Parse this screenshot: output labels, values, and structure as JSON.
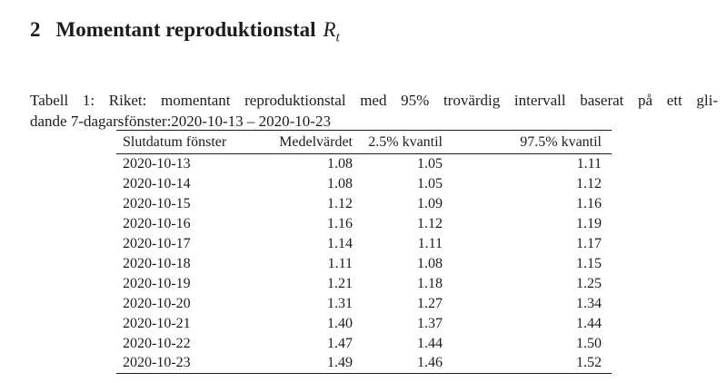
{
  "page": {
    "background_color": "#ffffff",
    "text_color": "#1c1c1c"
  },
  "heading": {
    "number": "2",
    "title": "Momentant reproduktionstal",
    "math_symbol": "R",
    "math_subscript": "t"
  },
  "caption": {
    "line1": "Tabell 1: Riket: momentant reproduktionstal med 95% trovärdig intervall baserat på ett gli-",
    "line2": "dande 7-dagarsfönster:2020-10-13 – 2020-10-23"
  },
  "chart_data": {
    "type": "table",
    "title": "Tabell 1: Riket: momentant reproduktionstal med 95% trovärdig intervall baserat på ett glidande 7-dagarsfönster:2020-10-13 – 2020-10-23",
    "columns": [
      "Slutdatum fönster",
      "Medelvärdet",
      "2.5% kvantil",
      "97.5% kvantil"
    ],
    "rows": [
      [
        "2020-10-13",
        "1.08",
        "1.05",
        "1.11"
      ],
      [
        "2020-10-14",
        "1.08",
        "1.05",
        "1.12"
      ],
      [
        "2020-10-15",
        "1.12",
        "1.09",
        "1.16"
      ],
      [
        "2020-10-16",
        "1.16",
        "1.12",
        "1.19"
      ],
      [
        "2020-10-17",
        "1.14",
        "1.11",
        "1.17"
      ],
      [
        "2020-10-18",
        "1.11",
        "1.08",
        "1.15"
      ],
      [
        "2020-10-19",
        "1.21",
        "1.18",
        "1.25"
      ],
      [
        "2020-10-20",
        "1.31",
        "1.27",
        "1.34"
      ],
      [
        "2020-10-21",
        "1.40",
        "1.37",
        "1.44"
      ],
      [
        "2020-10-22",
        "1.47",
        "1.44",
        "1.50"
      ],
      [
        "2020-10-23",
        "1.49",
        "1.46",
        "1.52"
      ]
    ]
  }
}
